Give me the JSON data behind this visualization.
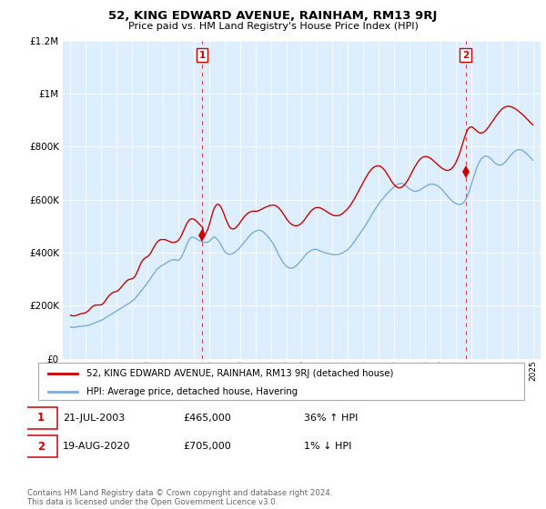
{
  "title": "52, KING EDWARD AVENUE, RAINHAM, RM13 9RJ",
  "subtitle": "Price paid vs. HM Land Registry's House Price Index (HPI)",
  "legend_line1": "52, KING EDWARD AVENUE, RAINHAM, RM13 9RJ (detached house)",
  "legend_line2": "HPI: Average price, detached house, Havering",
  "annotation1_date": "21-JUL-2003",
  "annotation1_price": "£465,000",
  "annotation1_hpi": "36% ↑ HPI",
  "annotation2_date": "19-AUG-2020",
  "annotation2_price": "£705,000",
  "annotation2_hpi": "1% ↓ HPI",
  "footer": "Contains HM Land Registry data © Crown copyright and database right 2024.\nThis data is licensed under the Open Government Licence v3.0.",
  "red_color": "#cc0000",
  "blue_color": "#7aaddb",
  "vline_color": "#cc0000",
  "bg_plot_color": "#ddeeff",
  "background_color": "#ffffff",
  "grid_color": "#ffffff",
  "ylim": [
    0,
    1200000
  ],
  "yticks": [
    0,
    200000,
    400000,
    600000,
    800000,
    1000000,
    1200000
  ],
  "ytick_labels": [
    "£0",
    "£200K",
    "£400K",
    "£600K",
    "£800K",
    "£1M",
    "£1.2M"
  ],
  "sale1_year": 2003.55,
  "sale1_price": 465000,
  "sale2_year": 2020.63,
  "sale2_price": 705000,
  "hpi_x": [
    1995.0,
    1995.08,
    1995.17,
    1995.25,
    1995.33,
    1995.42,
    1995.5,
    1995.58,
    1995.67,
    1995.75,
    1995.83,
    1995.92,
    1996.0,
    1996.08,
    1996.17,
    1996.25,
    1996.33,
    1996.42,
    1996.5,
    1996.58,
    1996.67,
    1996.75,
    1996.83,
    1996.92,
    1997.0,
    1997.08,
    1997.17,
    1997.25,
    1997.33,
    1997.42,
    1997.5,
    1997.58,
    1997.67,
    1997.75,
    1997.83,
    1997.92,
    1998.0,
    1998.08,
    1998.17,
    1998.25,
    1998.33,
    1998.42,
    1998.5,
    1998.58,
    1998.67,
    1998.75,
    1998.83,
    1998.92,
    1999.0,
    1999.08,
    1999.17,
    1999.25,
    1999.33,
    1999.42,
    1999.5,
    1999.58,
    1999.67,
    1999.75,
    1999.83,
    1999.92,
    2000.0,
    2000.08,
    2000.17,
    2000.25,
    2000.33,
    2000.42,
    2000.5,
    2000.58,
    2000.67,
    2000.75,
    2000.83,
    2000.92,
    2001.0,
    2001.08,
    2001.17,
    2001.25,
    2001.33,
    2001.42,
    2001.5,
    2001.58,
    2001.67,
    2001.75,
    2001.83,
    2001.92,
    2002.0,
    2002.08,
    2002.17,
    2002.25,
    2002.33,
    2002.42,
    2002.5,
    2002.58,
    2002.67,
    2002.75,
    2002.83,
    2002.92,
    2003.0,
    2003.08,
    2003.17,
    2003.25,
    2003.33,
    2003.42,
    2003.5,
    2003.58,
    2003.67,
    2003.75,
    2003.83,
    2003.92,
    2004.0,
    2004.08,
    2004.17,
    2004.25,
    2004.33,
    2004.42,
    2004.5,
    2004.58,
    2004.67,
    2004.75,
    2004.83,
    2004.92,
    2005.0,
    2005.08,
    2005.17,
    2005.25,
    2005.33,
    2005.42,
    2005.5,
    2005.58,
    2005.67,
    2005.75,
    2005.83,
    2005.92,
    2006.0,
    2006.08,
    2006.17,
    2006.25,
    2006.33,
    2006.42,
    2006.5,
    2006.58,
    2006.67,
    2006.75,
    2006.83,
    2006.92,
    2007.0,
    2007.08,
    2007.17,
    2007.25,
    2007.33,
    2007.42,
    2007.5,
    2007.58,
    2007.67,
    2007.75,
    2007.83,
    2007.92,
    2008.0,
    2008.08,
    2008.17,
    2008.25,
    2008.33,
    2008.42,
    2008.5,
    2008.58,
    2008.67,
    2008.75,
    2008.83,
    2008.92,
    2009.0,
    2009.08,
    2009.17,
    2009.25,
    2009.33,
    2009.42,
    2009.5,
    2009.58,
    2009.67,
    2009.75,
    2009.83,
    2009.92,
    2010.0,
    2010.08,
    2010.17,
    2010.25,
    2010.33,
    2010.42,
    2010.5,
    2010.58,
    2010.67,
    2010.75,
    2010.83,
    2010.92,
    2011.0,
    2011.08,
    2011.17,
    2011.25,
    2011.33,
    2011.42,
    2011.5,
    2011.58,
    2011.67,
    2011.75,
    2011.83,
    2011.92,
    2012.0,
    2012.08,
    2012.17,
    2012.25,
    2012.33,
    2012.42,
    2012.5,
    2012.58,
    2012.67,
    2012.75,
    2012.83,
    2012.92,
    2013.0,
    2013.08,
    2013.17,
    2013.25,
    2013.33,
    2013.42,
    2013.5,
    2013.58,
    2013.67,
    2013.75,
    2013.83,
    2013.92,
    2014.0,
    2014.08,
    2014.17,
    2014.25,
    2014.33,
    2014.42,
    2014.5,
    2014.58,
    2014.67,
    2014.75,
    2014.83,
    2014.92,
    2015.0,
    2015.08,
    2015.17,
    2015.25,
    2015.33,
    2015.42,
    2015.5,
    2015.58,
    2015.67,
    2015.75,
    2015.83,
    2015.92,
    2016.0,
    2016.08,
    2016.17,
    2016.25,
    2016.33,
    2016.42,
    2016.5,
    2016.58,
    2016.67,
    2016.75,
    2016.83,
    2016.92,
    2017.0,
    2017.08,
    2017.17,
    2017.25,
    2017.33,
    2017.42,
    2017.5,
    2017.58,
    2017.67,
    2017.75,
    2017.83,
    2017.92,
    2018.0,
    2018.08,
    2018.17,
    2018.25,
    2018.33,
    2018.42,
    2018.5,
    2018.58,
    2018.67,
    2018.75,
    2018.83,
    2018.92,
    2019.0,
    2019.08,
    2019.17,
    2019.25,
    2019.33,
    2019.42,
    2019.5,
    2019.58,
    2019.67,
    2019.75,
    2019.83,
    2019.92,
    2020.0,
    2020.08,
    2020.17,
    2020.25,
    2020.33,
    2020.42,
    2020.5,
    2020.58,
    2020.67,
    2020.75,
    2020.83,
    2020.92,
    2021.0,
    2021.08,
    2021.17,
    2021.25,
    2021.33,
    2021.42,
    2021.5,
    2021.58,
    2021.67,
    2021.75,
    2021.83,
    2021.92,
    2022.0,
    2022.08,
    2022.17,
    2022.25,
    2022.33,
    2022.42,
    2022.5,
    2022.58,
    2022.67,
    2022.75,
    2022.83,
    2022.92,
    2023.0,
    2023.08,
    2023.17,
    2023.25,
    2023.33,
    2023.42,
    2023.5,
    2023.58,
    2023.67,
    2023.75,
    2023.83,
    2023.92,
    2024.0,
    2024.08,
    2024.17,
    2024.25,
    2024.33,
    2024.42,
    2024.5,
    2024.58,
    2024.67,
    2024.75,
    2024.83,
    2024.92,
    2025.0
  ],
  "hpi_y": [
    120000,
    119000,
    118500,
    119000,
    120000,
    121000,
    121500,
    122000,
    122500,
    123000,
    123500,
    124000,
    125000,
    126000,
    127000,
    128000,
    130000,
    132000,
    134000,
    136000,
    138000,
    140000,
    142000,
    144000,
    146000,
    148000,
    151000,
    154000,
    157000,
    160000,
    163000,
    166000,
    169000,
    172000,
    175000,
    178000,
    181000,
    184000,
    187000,
    190000,
    193000,
    196000,
    199000,
    202000,
    205000,
    208000,
    211000,
    214000,
    218000,
    222000,
    226000,
    232000,
    238000,
    244000,
    250000,
    256000,
    262000,
    268000,
    274000,
    280000,
    287000,
    294000,
    301000,
    308000,
    315000,
    322000,
    329000,
    336000,
    340000,
    344000,
    348000,
    351000,
    354000,
    357000,
    360000,
    363000,
    366000,
    369000,
    371000,
    373000,
    374000,
    374000,
    373000,
    372000,
    371000,
    375000,
    381000,
    390000,
    400000,
    412000,
    424000,
    436000,
    447000,
    454000,
    458000,
    459000,
    458000,
    456000,
    453000,
    450000,
    447000,
    445000,
    443000,
    441000,
    440000,
    439000,
    440000,
    441000,
    443000,
    448000,
    453000,
    458000,
    459000,
    457000,
    453000,
    447000,
    440000,
    432000,
    423000,
    414000,
    405000,
    400000,
    397000,
    395000,
    394000,
    395000,
    397000,
    399000,
    402000,
    406000,
    410000,
    415000,
    420000,
    426000,
    432000,
    438000,
    444000,
    450000,
    456000,
    462000,
    467000,
    472000,
    476000,
    479000,
    482000,
    484000,
    485000,
    485000,
    484000,
    482000,
    479000,
    475000,
    470000,
    465000,
    459000,
    453000,
    447000,
    440000,
    432000,
    423000,
    414000,
    404000,
    394000,
    385000,
    376000,
    368000,
    361000,
    355000,
    350000,
    346000,
    344000,
    342000,
    342000,
    343000,
    345000,
    348000,
    352000,
    357000,
    362000,
    368000,
    374000,
    380000,
    386000,
    392000,
    397000,
    401000,
    405000,
    408000,
    410000,
    412000,
    413000,
    413000,
    412000,
    410000,
    408000,
    406000,
    404000,
    402000,
    400000,
    399000,
    398000,
    397000,
    396000,
    395000,
    394000,
    393000,
    393000,
    393000,
    394000,
    395000,
    396000,
    398000,
    400000,
    403000,
    406000,
    409000,
    413000,
    418000,
    423000,
    429000,
    435000,
    442000,
    449000,
    456000,
    463000,
    470000,
    477000,
    484000,
    491000,
    498000,
    506000,
    514000,
    522000,
    530000,
    539000,
    547000,
    555000,
    563000,
    570000,
    577000,
    584000,
    591000,
    597000,
    603000,
    609000,
    615000,
    621000,
    626000,
    631000,
    636000,
    640000,
    645000,
    649000,
    653000,
    656000,
    659000,
    661000,
    662000,
    662000,
    660000,
    657000,
    653000,
    649000,
    645000,
    641000,
    638000,
    635000,
    633000,
    632000,
    632000,
    633000,
    635000,
    637000,
    640000,
    643000,
    646000,
    649000,
    652000,
    655000,
    657000,
    658000,
    659000,
    659000,
    658000,
    657000,
    655000,
    652000,
    649000,
    645000,
    640000,
    635000,
    629000,
    623000,
    617000,
    611000,
    606000,
    601000,
    596000,
    592000,
    589000,
    586000,
    584000,
    583000,
    583000,
    583000,
    585000,
    589000,
    595000,
    603000,
    614000,
    627000,
    641000,
    656000,
    672000,
    688000,
    703000,
    717000,
    729000,
    740000,
    748000,
    755000,
    760000,
    763000,
    765000,
    765000,
    763000,
    760000,
    756000,
    751000,
    746000,
    741000,
    737000,
    734000,
    732000,
    731000,
    731000,
    733000,
    736000,
    740000,
    745000,
    751000,
    757000,
    763000,
    769000,
    774000,
    779000,
    783000,
    786000,
    788000,
    789000,
    789000,
    788000,
    786000,
    783000,
    779000,
    775000,
    770000,
    765000,
    760000,
    755000,
    750000
  ],
  "red_x": [
    1995.0,
    1995.08,
    1995.17,
    1995.25,
    1995.33,
    1995.42,
    1995.5,
    1995.58,
    1995.67,
    1995.75,
    1995.83,
    1995.92,
    1996.0,
    1996.08,
    1996.17,
    1996.25,
    1996.33,
    1996.42,
    1996.5,
    1996.58,
    1996.67,
    1996.75,
    1996.83,
    1996.92,
    1997.0,
    1997.08,
    1997.17,
    1997.25,
    1997.33,
    1997.42,
    1997.5,
    1997.58,
    1997.67,
    1997.75,
    1997.83,
    1997.92,
    1998.0,
    1998.08,
    1998.17,
    1998.25,
    1998.33,
    1998.42,
    1998.5,
    1998.58,
    1998.67,
    1998.75,
    1998.83,
    1998.92,
    1999.0,
    1999.08,
    1999.17,
    1999.25,
    1999.33,
    1999.42,
    1999.5,
    1999.58,
    1999.67,
    1999.75,
    1999.83,
    1999.92,
    2000.0,
    2000.08,
    2000.17,
    2000.25,
    2000.33,
    2000.42,
    2000.5,
    2000.58,
    2000.67,
    2000.75,
    2000.83,
    2000.92,
    2001.0,
    2001.08,
    2001.17,
    2001.25,
    2001.33,
    2001.42,
    2001.5,
    2001.58,
    2001.67,
    2001.75,
    2001.83,
    2001.92,
    2002.0,
    2002.08,
    2002.17,
    2002.25,
    2002.33,
    2002.42,
    2002.5,
    2002.58,
    2002.67,
    2002.75,
    2002.83,
    2002.92,
    2003.0,
    2003.08,
    2003.17,
    2003.25,
    2003.33,
    2003.42,
    2003.5,
    2003.58,
    2003.67,
    2003.75,
    2003.83,
    2003.92,
    2004.0,
    2004.08,
    2004.17,
    2004.25,
    2004.33,
    2004.42,
    2004.5,
    2004.58,
    2004.67,
    2004.75,
    2004.83,
    2004.92,
    2005.0,
    2005.08,
    2005.17,
    2005.25,
    2005.33,
    2005.42,
    2005.5,
    2005.58,
    2005.67,
    2005.75,
    2005.83,
    2005.92,
    2006.0,
    2006.08,
    2006.17,
    2006.25,
    2006.33,
    2006.42,
    2006.5,
    2006.58,
    2006.67,
    2006.75,
    2006.83,
    2006.92,
    2007.0,
    2007.08,
    2007.17,
    2007.25,
    2007.33,
    2007.42,
    2007.5,
    2007.58,
    2007.67,
    2007.75,
    2007.83,
    2007.92,
    2008.0,
    2008.08,
    2008.17,
    2008.25,
    2008.33,
    2008.42,
    2008.5,
    2008.58,
    2008.67,
    2008.75,
    2008.83,
    2008.92,
    2009.0,
    2009.08,
    2009.17,
    2009.25,
    2009.33,
    2009.42,
    2009.5,
    2009.58,
    2009.67,
    2009.75,
    2009.83,
    2009.92,
    2010.0,
    2010.08,
    2010.17,
    2010.25,
    2010.33,
    2010.42,
    2010.5,
    2010.58,
    2010.67,
    2010.75,
    2010.83,
    2010.92,
    2011.0,
    2011.08,
    2011.17,
    2011.25,
    2011.33,
    2011.42,
    2011.5,
    2011.58,
    2011.67,
    2011.75,
    2011.83,
    2011.92,
    2012.0,
    2012.08,
    2012.17,
    2012.25,
    2012.33,
    2012.42,
    2012.5,
    2012.58,
    2012.67,
    2012.75,
    2012.83,
    2012.92,
    2013.0,
    2013.08,
    2013.17,
    2013.25,
    2013.33,
    2013.42,
    2013.5,
    2013.58,
    2013.67,
    2013.75,
    2013.83,
    2013.92,
    2014.0,
    2014.08,
    2014.17,
    2014.25,
    2014.33,
    2014.42,
    2014.5,
    2014.58,
    2014.67,
    2014.75,
    2014.83,
    2014.92,
    2015.0,
    2015.08,
    2015.17,
    2015.25,
    2015.33,
    2015.42,
    2015.5,
    2015.58,
    2015.67,
    2015.75,
    2015.83,
    2015.92,
    2016.0,
    2016.08,
    2016.17,
    2016.25,
    2016.33,
    2016.42,
    2016.5,
    2016.58,
    2016.67,
    2016.75,
    2016.83,
    2016.92,
    2017.0,
    2017.08,
    2017.17,
    2017.25,
    2017.33,
    2017.42,
    2017.5,
    2017.58,
    2017.67,
    2017.75,
    2017.83,
    2017.92,
    2018.0,
    2018.08,
    2018.17,
    2018.25,
    2018.33,
    2018.42,
    2018.5,
    2018.58,
    2018.67,
    2018.75,
    2018.83,
    2018.92,
    2019.0,
    2019.08,
    2019.17,
    2019.25,
    2019.33,
    2019.42,
    2019.5,
    2019.58,
    2019.67,
    2019.75,
    2019.83,
    2019.92,
    2020.0,
    2020.08,
    2020.17,
    2020.25,
    2020.33,
    2020.42,
    2020.5,
    2020.58,
    2020.67,
    2020.75,
    2020.83,
    2020.92,
    2021.0,
    2021.08,
    2021.17,
    2021.25,
    2021.33,
    2021.42,
    2021.5,
    2021.58,
    2021.67,
    2021.75,
    2021.83,
    2021.92,
    2022.0,
    2022.08,
    2022.17,
    2022.25,
    2022.33,
    2022.42,
    2022.5,
    2022.58,
    2022.67,
    2022.75,
    2022.83,
    2022.92,
    2023.0,
    2023.08,
    2023.17,
    2023.25,
    2023.33,
    2023.42,
    2023.5,
    2023.58,
    2023.67,
    2023.75,
    2023.83,
    2023.92,
    2024.0,
    2024.08,
    2024.17,
    2024.25,
    2024.33,
    2024.42,
    2024.5,
    2024.58,
    2024.67,
    2024.75,
    2024.83,
    2024.92,
    2025.0
  ],
  "red_y": [
    165000,
    163000,
    162000,
    162000,
    163000,
    165000,
    167000,
    168000,
    170000,
    171000,
    172000,
    173000,
    175000,
    178000,
    182000,
    187000,
    192000,
    197000,
    200000,
    202000,
    203000,
    203000,
    203000,
    203000,
    204000,
    207000,
    212000,
    218000,
    225000,
    232000,
    238000,
    243000,
    247000,
    250000,
    252000,
    253000,
    255000,
    258000,
    262000,
    267000,
    273000,
    279000,
    285000,
    290000,
    295000,
    298000,
    300000,
    301000,
    302000,
    305000,
    310000,
    318000,
    328000,
    340000,
    352000,
    362000,
    370000,
    376000,
    380000,
    383000,
    386000,
    390000,
    396000,
    404000,
    413000,
    422000,
    430000,
    437000,
    443000,
    447000,
    449000,
    450000,
    450000,
    450000,
    449000,
    447000,
    445000,
    443000,
    441000,
    440000,
    439000,
    440000,
    441000,
    443000,
    447000,
    454000,
    462000,
    472000,
    483000,
    494000,
    505000,
    514000,
    521000,
    526000,
    528000,
    528000,
    527000,
    524000,
    520000,
    515000,
    510000,
    505000,
    500000,
    495000,
    465000,
    470000,
    480000,
    490000,
    505000,
    522000,
    540000,
    556000,
    568000,
    577000,
    582000,
    583000,
    580000,
    574000,
    565000,
    553000,
    540000,
    527000,
    515000,
    505000,
    497000,
    492000,
    490000,
    490000,
    492000,
    496000,
    501000,
    507000,
    514000,
    521000,
    528000,
    534000,
    540000,
    545000,
    549000,
    552000,
    554000,
    556000,
    557000,
    557000,
    557000,
    557000,
    558000,
    560000,
    562000,
    565000,
    568000,
    570000,
    572000,
    574000,
    576000,
    578000,
    579000,
    580000,
    580000,
    579000,
    577000,
    574000,
    570000,
    565000,
    559000,
    552000,
    545000,
    537000,
    530000,
    523000,
    517000,
    512000,
    508000,
    505000,
    503000,
    502000,
    502000,
    503000,
    505000,
    508000,
    512000,
    517000,
    523000,
    530000,
    537000,
    544000,
    550000,
    556000,
    561000,
    565000,
    568000,
    570000,
    571000,
    571000,
    570000,
    568000,
    566000,
    563000,
    560000,
    557000,
    554000,
    551000,
    548000,
    545000,
    543000,
    541000,
    540000,
    540000,
    540000,
    541000,
    543000,
    546000,
    549000,
    553000,
    557000,
    562000,
    567000,
    573000,
    580000,
    587000,
    595000,
    603000,
    612000,
    621000,
    630000,
    639000,
    648000,
    657000,
    666000,
    675000,
    684000,
    692000,
    700000,
    707000,
    713000,
    718000,
    722000,
    725000,
    727000,
    728000,
    728000,
    727000,
    724000,
    720000,
    715000,
    709000,
    702000,
    694000,
    686000,
    678000,
    670000,
    663000,
    657000,
    652000,
    648000,
    646000,
    645000,
    646000,
    648000,
    651000,
    656000,
    662000,
    669000,
    677000,
    686000,
    695000,
    705000,
    714000,
    723000,
    731000,
    739000,
    746000,
    752000,
    756000,
    760000,
    762000,
    763000,
    763000,
    762000,
    760000,
    757000,
    754000,
    750000,
    746000,
    741000,
    737000,
    732000,
    728000,
    724000,
    720000,
    717000,
    714000,
    712000,
    711000,
    711000,
    712000,
    715000,
    719000,
    724000,
    731000,
    740000,
    750000,
    762000,
    775000,
    790000,
    806000,
    822000,
    837000,
    851000,
    862000,
    870000,
    874000,
    875000,
    874000,
    870000,
    866000,
    861000,
    857000,
    854000,
    852000,
    852000,
    853000,
    856000,
    860000,
    865000,
    871000,
    878000,
    885000,
    892000,
    899000,
    906000,
    913000,
    920000,
    926000,
    932000,
    937000,
    942000,
    946000,
    949000,
    951000,
    952000,
    953000,
    952000,
    951000,
    949000,
    947000,
    944000,
    941000,
    938000,
    934000,
    930000,
    926000,
    922000,
    917000,
    912000,
    907000,
    902000,
    897000,
    892000,
    887000,
    882000
  ]
}
